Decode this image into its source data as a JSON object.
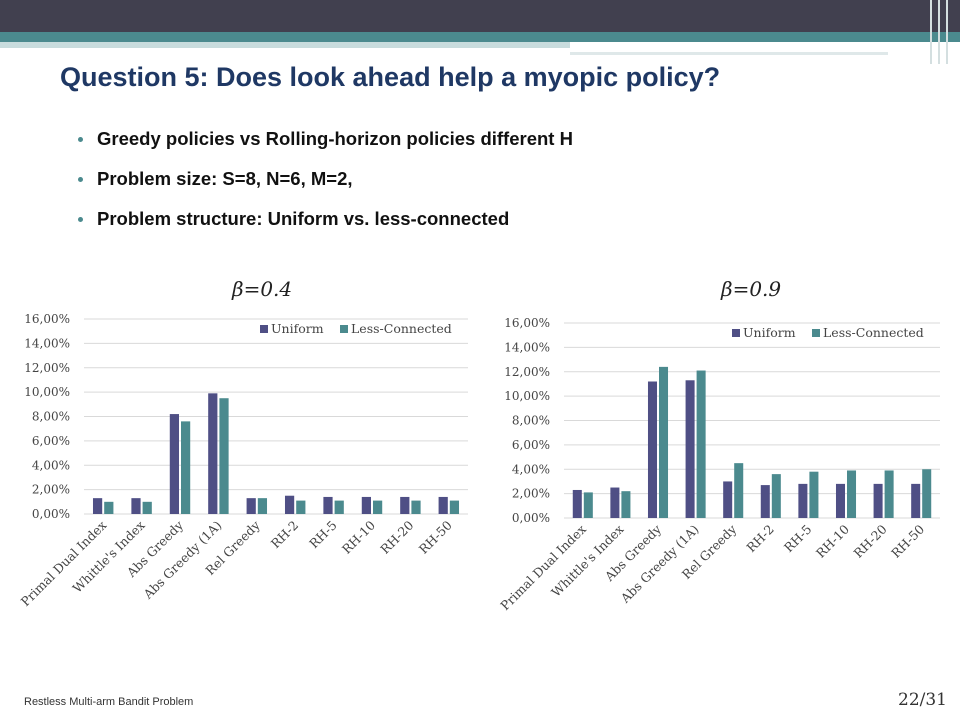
{
  "slide": {
    "title": "Question 5: Does look ahead help a myopic policy?",
    "bullets": [
      "Greedy policies vs Rolling-horizon policies different H",
      "Problem size: S=8, N=6, M=2,",
      "Problem structure: Uniform vs. less-connected"
    ],
    "footer_left": "Restless Multi-arm Bandit Problem",
    "page_number": "22/31"
  },
  "colors": {
    "uniform": "#4f4f85",
    "less_connected": "#4b8a8e",
    "title": "#1f3864",
    "accent": "#4b8a8e"
  },
  "chart_data": [
    {
      "type": "bar",
      "title": "β=0.4",
      "categories": [
        "Primal Dual Index",
        "Whittle's Index",
        "Abs Greedy",
        "Abs Greedy (1A)",
        "Rel Greedy",
        "RH-2",
        "RH-5",
        "RH-10",
        "RH-20",
        "RH-50"
      ],
      "series": [
        {
          "name": "Uniform",
          "values": [
            1.3,
            1.3,
            8.2,
            9.9,
            1.3,
            1.5,
            1.4,
            1.4,
            1.4,
            1.4
          ]
        },
        {
          "name": "Less-Connected",
          "values": [
            1.0,
            1.0,
            7.6,
            9.5,
            1.3,
            1.1,
            1.1,
            1.1,
            1.1,
            1.1
          ]
        }
      ],
      "ylim": [
        0,
        16
      ],
      "yticks": [
        "0,00%",
        "2,00%",
        "4,00%",
        "6,00%",
        "8,00%",
        "10,00%",
        "12,00%",
        "14,00%",
        "16,00%"
      ],
      "legend": "top-right",
      "grid": true
    },
    {
      "type": "bar",
      "title": "β=0.9",
      "categories": [
        "Primal Dual Index",
        "Whittle's Index",
        "Abs Greedy",
        "Abs Greedy (1A)",
        "Rel Greedy",
        "RH-2",
        "RH-5",
        "RH-10",
        "RH-20",
        "RH-50"
      ],
      "series": [
        {
          "name": "Uniform",
          "values": [
            2.3,
            2.5,
            11.2,
            11.3,
            3.0,
            2.7,
            2.8,
            2.8,
            2.8,
            2.8
          ]
        },
        {
          "name": "Less-Connected",
          "values": [
            2.1,
            2.2,
            12.4,
            12.1,
            4.5,
            3.6,
            3.8,
            3.9,
            3.9,
            4.0
          ]
        }
      ],
      "ylim": [
        0,
        16
      ],
      "yticks": [
        "0,00%",
        "2,00%",
        "4,00%",
        "6,00%",
        "8,00%",
        "10,00%",
        "12,00%",
        "14,00%",
        "16,00%"
      ],
      "legend": "top-right",
      "grid": true
    }
  ]
}
